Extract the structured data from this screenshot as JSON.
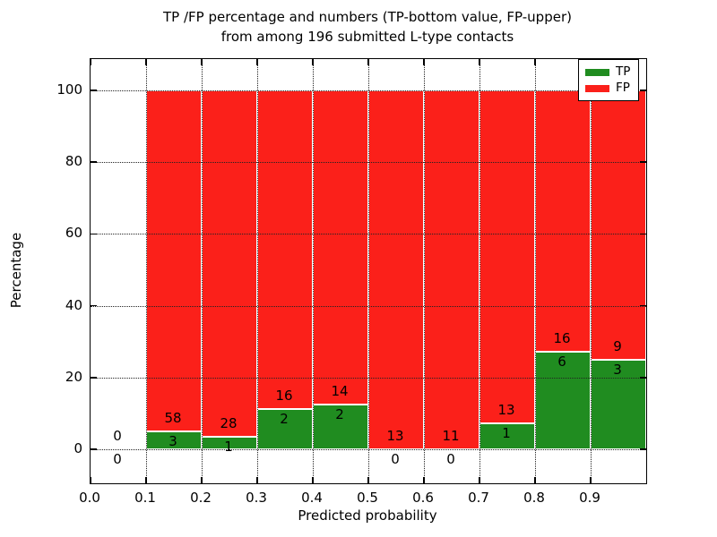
{
  "chart_data": {
    "type": "bar",
    "stacked": true,
    "title_line1": "TP /FP percentage and numbers (TP-bottom value, FP-upper)",
    "title_line2": "from among 196 submitted L-type contacts",
    "xlabel": "Predicted probability",
    "ylabel": "Percentage",
    "total_submitted_contacts": 196,
    "bar_width": 0.1,
    "xlim": [
      0.0,
      1.0
    ],
    "ylim": [
      -9.48,
      108.73
    ],
    "grid": "dotted-both-axes",
    "legend_position": "upper-right",
    "x_ticks": [
      {
        "value": 0.0,
        "label": "0.0"
      },
      {
        "value": 0.1,
        "label": "0.1"
      },
      {
        "value": 0.2,
        "label": "0.2"
      },
      {
        "value": 0.3,
        "label": "0.3"
      },
      {
        "value": 0.4,
        "label": "0.4"
      },
      {
        "value": 0.5,
        "label": "0.5"
      },
      {
        "value": 0.6,
        "label": "0.6"
      },
      {
        "value": 0.7,
        "label": "0.7"
      },
      {
        "value": 0.8,
        "label": "0.8"
      },
      {
        "value": 0.9,
        "label": "0.9"
      }
    ],
    "y_ticks": [
      {
        "value": 0,
        "label": "0"
      },
      {
        "value": 20,
        "label": "20"
      },
      {
        "value": 40,
        "label": "40"
      },
      {
        "value": 60,
        "label": "60"
      },
      {
        "value": 80,
        "label": "80"
      },
      {
        "value": 100,
        "label": "100"
      }
    ],
    "bins": [
      {
        "range": "0.0-0.1",
        "x": 0.0,
        "tp_count": 0,
        "fp_count": 0,
        "tp_pct": 0.0,
        "fp_pct": 0.0
      },
      {
        "range": "0.1-0.2",
        "x": 0.1,
        "tp_count": 3,
        "fp_count": 58,
        "tp_pct": 4.92,
        "fp_pct": 95.08
      },
      {
        "range": "0.2-0.3",
        "x": 0.2,
        "tp_count": 1,
        "fp_count": 28,
        "tp_pct": 3.45,
        "fp_pct": 96.55
      },
      {
        "range": "0.3-0.4",
        "x": 0.3,
        "tp_count": 2,
        "fp_count": 16,
        "tp_pct": 11.11,
        "fp_pct": 88.89
      },
      {
        "range": "0.4-0.5",
        "x": 0.4,
        "tp_count": 2,
        "fp_count": 14,
        "tp_pct": 12.5,
        "fp_pct": 87.5
      },
      {
        "range": "0.5-0.6",
        "x": 0.5,
        "tp_count": 0,
        "fp_count": 13,
        "tp_pct": 0.0,
        "fp_pct": 100.0
      },
      {
        "range": "0.6-0.7",
        "x": 0.6,
        "tp_count": 0,
        "fp_count": 11,
        "tp_pct": 0.0,
        "fp_pct": 100.0
      },
      {
        "range": "0.7-0.8",
        "x": 0.7,
        "tp_count": 1,
        "fp_count": 13,
        "tp_pct": 7.14,
        "fp_pct": 92.86
      },
      {
        "range": "0.8-0.9",
        "x": 0.8,
        "tp_count": 6,
        "fp_count": 16,
        "tp_pct": 27.27,
        "fp_pct": 72.73
      },
      {
        "range": "0.9-1.0",
        "x": 0.9,
        "tp_count": 3,
        "fp_count": 9,
        "tp_pct": 25.0,
        "fp_pct": 75.0
      }
    ],
    "legend": [
      {
        "label": "TP",
        "color": "#208c20"
      },
      {
        "label": "FP",
        "color": "#fb201a"
      }
    ],
    "colors": {
      "tp_green": "#208c20",
      "fp_red": "#fb201a",
      "bar_edge": "#ffffff",
      "grid": "#222222",
      "spine": "#000000"
    }
  }
}
